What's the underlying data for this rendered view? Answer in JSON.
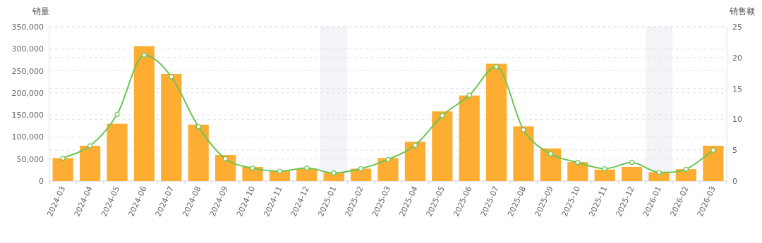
{
  "chart_data": {
    "type": "bar",
    "ylabel": "销量",
    "y2label": "销售额",
    "categories": [
      "2024-03",
      "2024-04",
      "2024-05",
      "2024-06",
      "2024-07",
      "2024-08",
      "2024-09",
      "2024-10",
      "2024-11",
      "2024-12",
      "2025-01",
      "2025-02",
      "2025-03",
      "2025-04",
      "2025-05",
      "2025-06",
      "2025-07",
      "2025-08",
      "2025-09",
      "2025-10",
      "2025-11",
      "2025-12",
      "2026-01",
      "2026-02",
      "2026-03"
    ],
    "series": [
      {
        "color": "#fcad32",
        "values": [
          52000,
          80000,
          130000,
          306000,
          243000,
          128000,
          59000,
          32000,
          23000,
          28000,
          19000,
          28000,
          52000,
          89000,
          158000,
          194000,
          266000,
          124000,
          74000,
          43000,
          26000,
          32000,
          20000,
          27000,
          80000
        ]
      },
      {
        "type": "line",
        "axis": "y2",
        "color": "#6cc552",
        "marker": "circle",
        "values": [
          3.7,
          5.7,
          10.8,
          20.4,
          16.9,
          8.8,
          3.6,
          2.1,
          1.6,
          2.1,
          1.3,
          2.0,
          3.5,
          5.8,
          10.6,
          13.9,
          18.5,
          8.3,
          4.4,
          3.0,
          2.0,
          3.0,
          1.4,
          1.9,
          5.0
        ]
      }
    ],
    "ylim": [
      0,
      350000
    ],
    "yticks": [
      {
        "value": 0,
        "label": "0"
      },
      {
        "value": 50000,
        "label": "50,000"
      },
      {
        "value": 100000,
        "label": "100,000"
      },
      {
        "value": 150000,
        "label": "150,000"
      },
      {
        "value": 200000,
        "label": "200,000"
      },
      {
        "value": 250000,
        "label": "250,000"
      },
      {
        "value": 300000,
        "label": "300,000"
      },
      {
        "value": 350000,
        "label": "350,000"
      }
    ],
    "y2lim": [
      0,
      25
    ],
    "y2ticks": [
      0,
      5,
      10,
      15,
      20,
      25
    ],
    "bands": [
      {
        "axis": "x",
        "from": "2025-01",
        "to": "2025-01",
        "color": "#f2f4f7"
      },
      {
        "axis": "x",
        "from": "2026-01",
        "to": "2026-01",
        "color": "#f2f4f7"
      }
    ],
    "grid": "y"
  }
}
